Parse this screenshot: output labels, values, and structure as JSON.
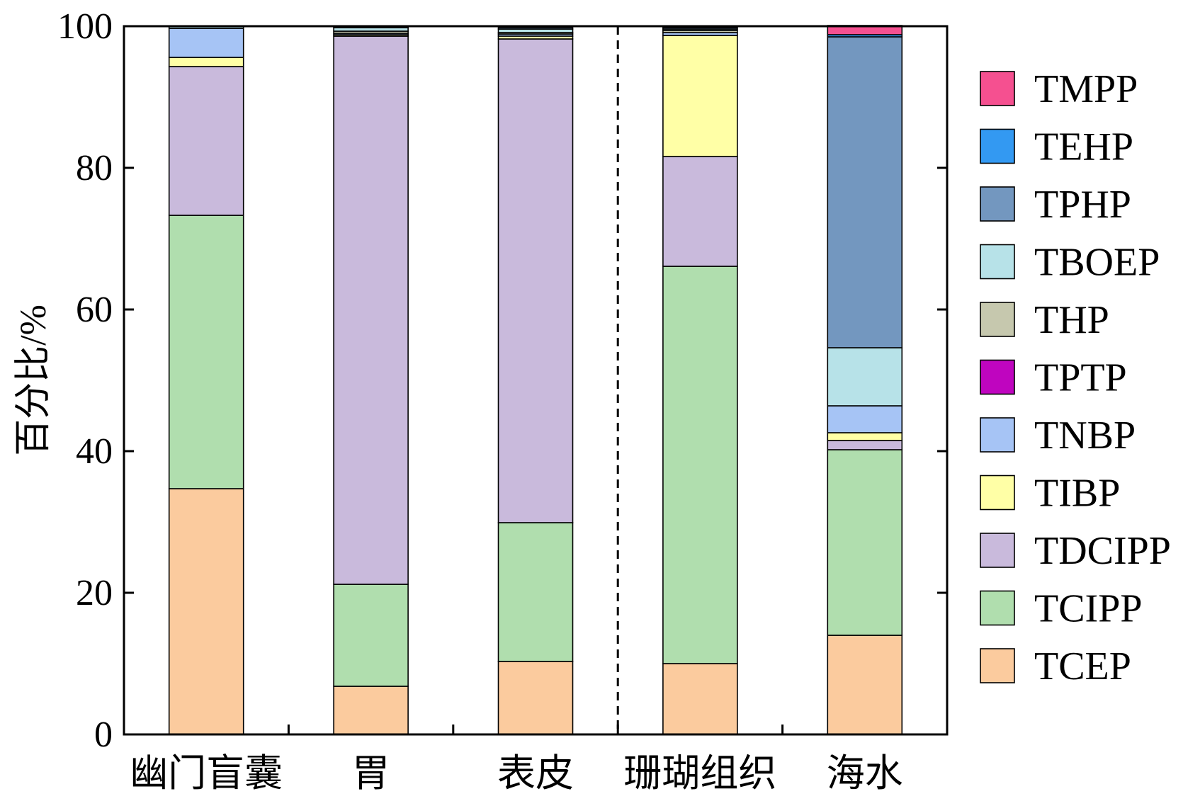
{
  "chart_data": {
    "type": "bar",
    "stacked": true,
    "ylabel": "百分比/%",
    "ylim": [
      0,
      100
    ],
    "yticks": [
      0,
      20,
      40,
      60,
      80,
      100
    ],
    "categories": [
      "幽门盲囊",
      "胃",
      "表皮",
      "珊瑚组织",
      "海水"
    ],
    "divider_after_category": 2,
    "legend_position": "right",
    "series": [
      {
        "name": "TCEP",
        "color": "#FBCB9E",
        "values": [
          34.7,
          6.8,
          10.3,
          10.0,
          14.0
        ]
      },
      {
        "name": "TCIPP",
        "color": "#B0DEAE",
        "values": [
          38.6,
          14.4,
          19.6,
          56.1,
          26.2
        ]
      },
      {
        "name": "TDCIPP",
        "color": "#C9BADC",
        "values": [
          21.0,
          77.4,
          68.3,
          15.5,
          1.3
        ]
      },
      {
        "name": "TIBP",
        "color": "#FFFFA6",
        "values": [
          1.3,
          0.2,
          0.4,
          17.1,
          1.1
        ]
      },
      {
        "name": "TNBP",
        "color": "#A6C4F5",
        "values": [
          4.1,
          0.2,
          0.3,
          0.4,
          3.8
        ]
      },
      {
        "name": "TPTP",
        "color": "#BF05BF",
        "values": [
          0,
          0,
          0,
          0,
          0
        ]
      },
      {
        "name": "THP",
        "color": "#C6C8AE",
        "values": [
          0,
          0.3,
          0.2,
          0.3,
          0
        ]
      },
      {
        "name": "TBOEP",
        "color": "#B7E2E8",
        "values": [
          0.3,
          0.5,
          0.5,
          0.2,
          8.2
        ]
      },
      {
        "name": "TPHP",
        "color": "#7397BF",
        "values": [
          0,
          0.1,
          0.2,
          0.2,
          43.9
        ]
      },
      {
        "name": "TEHP",
        "color": "#3399F2",
        "values": [
          0,
          0,
          0,
          0.1,
          0.3
        ]
      },
      {
        "name": "TMPP",
        "color": "#F55090",
        "values": [
          0,
          0,
          0,
          0,
          1.3
        ]
      }
    ]
  }
}
